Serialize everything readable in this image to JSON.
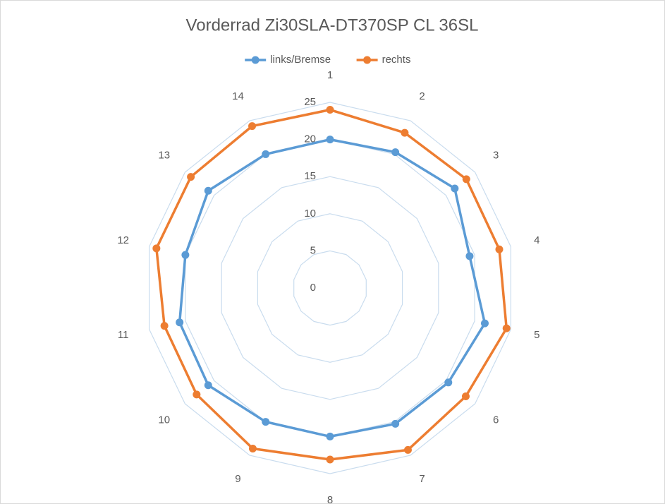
{
  "chart_data": {
    "type": "radar",
    "title": "Vorderrad  Zi30SLA-DT370SP CL 36SL",
    "categories": [
      "1",
      "2",
      "3",
      "4",
      "5",
      "6",
      "7",
      "8",
      "9",
      "10",
      "11",
      "12",
      "13",
      "14"
    ],
    "series": [
      {
        "name": "links/Bremse",
        "color": "#5b9bd5",
        "values": [
          20,
          20.3,
          21.5,
          19.3,
          21.4,
          20.4,
          20.3,
          20,
          20,
          21,
          20.8,
          20,
          21,
          20
        ]
      },
      {
        "name": "rechts",
        "color": "#ed7d31",
        "values": [
          24,
          23.2,
          23.5,
          23.4,
          24.4,
          23.4,
          24.2,
          23.1,
          24,
          23,
          22.9,
          24,
          24,
          24.2
        ]
      }
    ],
    "ylim": [
      0,
      25
    ],
    "yticks": [
      0,
      5,
      10,
      15,
      20,
      25
    ],
    "grid": true,
    "legend": "top"
  }
}
